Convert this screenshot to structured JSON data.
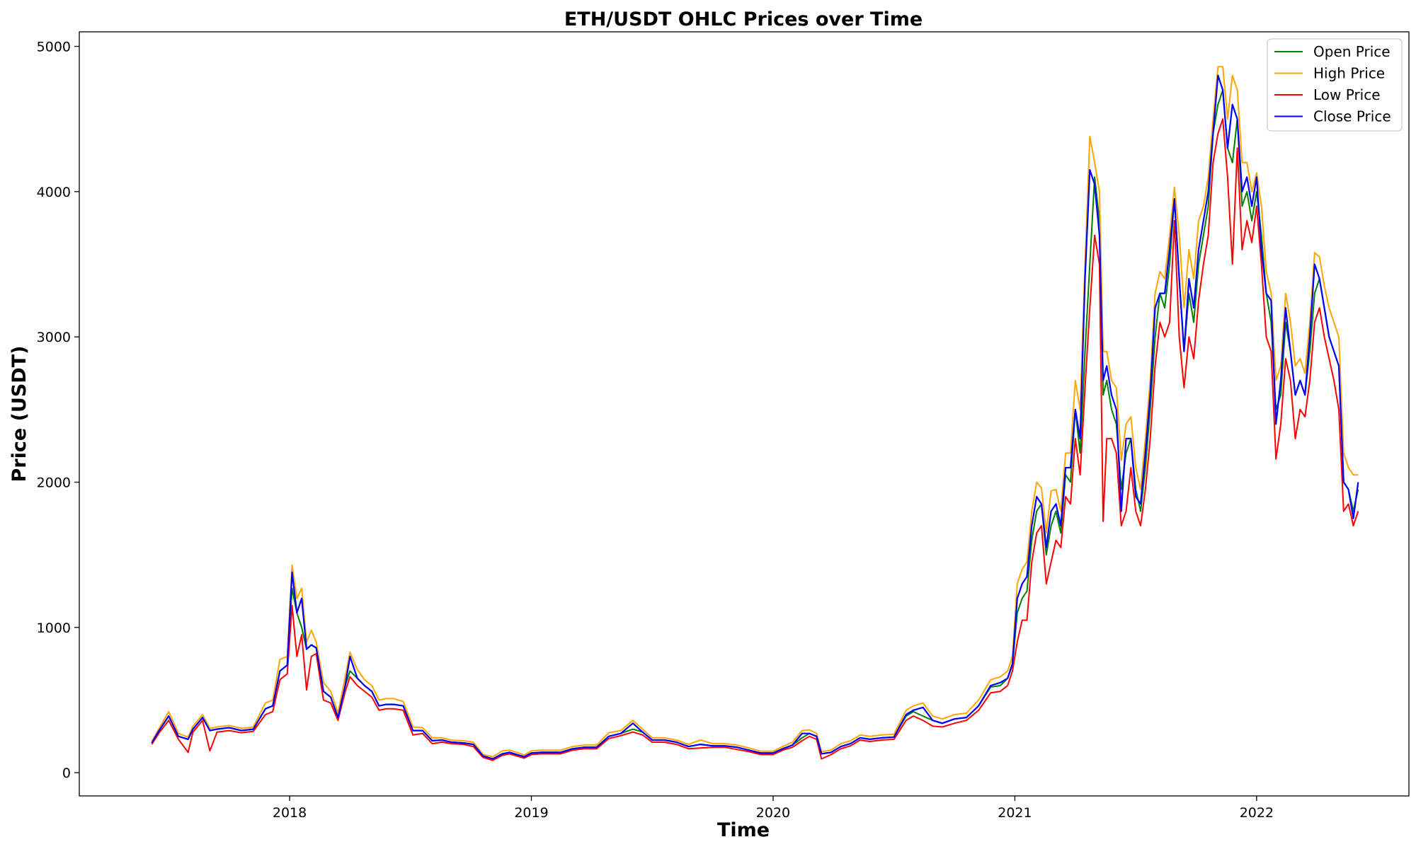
{
  "chart_data": {
    "type": "line",
    "title": "ETH/USDT OHLC Prices over Time",
    "xlabel": "Time",
    "ylabel": "Price (USDT)",
    "x_ticks": [
      "2018",
      "2019",
      "2020",
      "2021",
      "2022"
    ],
    "y_ticks": [
      0,
      1000,
      2000,
      3000,
      4000,
      5000
    ],
    "ylim": [
      -160,
      5100
    ],
    "xlim": [
      2017.13,
      2022.63
    ],
    "grid": false,
    "legend_position": "top-right",
    "x": [
      2017.43,
      2017.46,
      2017.5,
      2017.54,
      2017.58,
      2017.6,
      2017.64,
      2017.67,
      2017.7,
      2017.75,
      2017.8,
      2017.85,
      2017.9,
      2017.93,
      2017.96,
      2017.99,
      2018.01,
      2018.03,
      2018.05,
      2018.07,
      2018.09,
      2018.11,
      2018.14,
      2018.17,
      2018.2,
      2018.23,
      2018.25,
      2018.28,
      2018.31,
      2018.34,
      2018.37,
      2018.4,
      2018.43,
      2018.47,
      2018.51,
      2018.55,
      2018.59,
      2018.63,
      2018.67,
      2018.72,
      2018.76,
      2018.8,
      2018.84,
      2018.88,
      2018.91,
      2018.94,
      2018.97,
      2019.0,
      2019.04,
      2019.08,
      2019.12,
      2019.17,
      2019.22,
      2019.27,
      2019.32,
      2019.37,
      2019.42,
      2019.46,
      2019.5,
      2019.55,
      2019.6,
      2019.65,
      2019.7,
      2019.75,
      2019.8,
      2019.85,
      2019.9,
      2019.95,
      2020.0,
      2020.04,
      2020.08,
      2020.12,
      2020.15,
      2020.18,
      2020.2,
      2020.24,
      2020.28,
      2020.32,
      2020.36,
      2020.4,
      2020.45,
      2020.5,
      2020.55,
      2020.58,
      2020.62,
      2020.66,
      2020.7,
      2020.75,
      2020.8,
      2020.85,
      2020.9,
      2020.94,
      2020.97,
      2020.99,
      2021.01,
      2021.03,
      2021.05,
      2021.07,
      2021.09,
      2021.11,
      2021.13,
      2021.15,
      2021.17,
      2021.19,
      2021.21,
      2021.23,
      2021.25,
      2021.27,
      2021.29,
      2021.31,
      2021.33,
      2021.35,
      2021.365,
      2021.38,
      2021.4,
      2021.42,
      2021.44,
      2021.46,
      2021.48,
      2021.5,
      2021.52,
      2021.54,
      2021.56,
      2021.58,
      2021.6,
      2021.62,
      2021.64,
      2021.66,
      2021.68,
      2021.7,
      2021.72,
      2021.74,
      2021.76,
      2021.78,
      2021.8,
      2021.82,
      2021.84,
      2021.86,
      2021.88,
      2021.9,
      2021.92,
      2021.94,
      2021.96,
      2021.98,
      2022.0,
      2022.02,
      2022.04,
      2022.06,
      2022.08,
      2022.1,
      2022.12,
      2022.14,
      2022.16,
      2022.18,
      2022.2,
      2022.22,
      2022.24,
      2022.26,
      2022.28,
      2022.3,
      2022.32,
      2022.34,
      2022.36,
      2022.38,
      2022.4,
      2022.42
    ],
    "series": [
      {
        "name": "Open Price",
        "color": "#008000",
        "values": [
          205,
          290,
          390,
          250,
          230,
          300,
          380,
          290,
          300,
          310,
          290,
          300,
          440,
          460,
          700,
          740,
          1270,
          1100,
          1000,
          850,
          880,
          860,
          560,
          520,
          380,
          600,
          700,
          650,
          600,
          560,
          460,
          470,
          470,
          460,
          290,
          290,
          220,
          225,
          210,
          205,
          195,
          115,
          95,
          130,
          140,
          125,
          110,
          135,
          140,
          140,
          140,
          165,
          175,
          175,
          250,
          270,
          300,
          280,
          225,
          225,
          210,
          180,
          195,
          185,
          185,
          175,
          155,
          135,
          135,
          165,
          190,
          240,
          270,
          250,
          130,
          140,
          180,
          200,
          240,
          230,
          240,
          245,
          390,
          420,
          390,
          360,
          340,
          370,
          380,
          460,
          590,
          600,
          650,
          740,
          1100,
          1200,
          1250,
          1600,
          1800,
          1850,
          1500,
          1700,
          1800,
          1650,
          2050,
          2000,
          2500,
          2200,
          2900,
          3500,
          4100,
          3800,
          2600,
          2700,
          2500,
          2400,
          1950,
          2200,
          2300,
          1950,
          1800,
          2100,
          2500,
          3000,
          3300,
          3200,
          3500,
          3950,
          3400,
          2900,
          3300,
          3100,
          3500,
          3700,
          3900,
          4400,
          4600,
          4700,
          4300,
          4200,
          4500,
          3900,
          4000,
          3800,
          4000,
          3700,
          3300,
          3100,
          2500,
          2600,
          3100,
          2900,
          2600,
          2700,
          2600,
          2900,
          3300,
          3400,
          3200,
          3000,
          2900,
          2800,
          2000,
          1950,
          1800,
          1950
        ]
      },
      {
        "name": "High Price",
        "color": "#ffa500",
        "values": [
          215,
          305,
          420,
          270,
          245,
          320,
          400,
          305,
          315,
          325,
          305,
          315,
          480,
          500,
          780,
          800,
          1430,
          1200,
          1270,
          900,
          980,
          900,
          620,
          560,
          410,
          660,
          830,
          710,
          640,
          600,
          500,
          510,
          510,
          490,
          315,
          310,
          240,
          240,
          225,
          220,
          210,
          125,
          110,
          150,
          155,
          140,
          122,
          150,
          155,
          155,
          155,
          180,
          190,
          190,
          275,
          290,
          360,
          300,
          240,
          240,
          225,
          195,
          225,
          200,
          200,
          190,
          170,
          148,
          148,
          180,
          210,
          290,
          295,
          270,
          145,
          155,
          200,
          220,
          260,
          250,
          260,
          265,
          430,
          460,
          480,
          390,
          370,
          400,
          410,
          500,
          640,
          660,
          700,
          800,
          1300,
          1400,
          1450,
          1800,
          2000,
          1960,
          1650,
          1940,
          1950,
          1800,
          2200,
          2200,
          2700,
          2500,
          3500,
          4380,
          4200,
          4000,
          2900,
          2900,
          2700,
          2650,
          2150,
          2400,
          2450,
          2100,
          1950,
          2300,
          2700,
          3300,
          3450,
          3400,
          3700,
          4030,
          3700,
          3200,
          3600,
          3400,
          3800,
          3900,
          4100,
          4500,
          4860,
          4860,
          4500,
          4800,
          4700,
          4200,
          4200,
          4000,
          4130,
          3900,
          3450,
          3300,
          2700,
          2800,
          3300,
          3100,
          2800,
          2850,
          2750,
          3100,
          3580,
          3550,
          3350,
          3200,
          3100,
          3000,
          2200,
          2100,
          2050,
          2050
        ]
      },
      {
        "name": "Low Price",
        "color": "#ff0000",
        "values": [
          195,
          275,
          360,
          230,
          140,
          280,
          360,
          150,
          280,
          290,
          275,
          285,
          400,
          420,
          640,
          680,
          1150,
          800,
          950,
          570,
          800,
          820,
          500,
          480,
          360,
          560,
          660,
          600,
          560,
          520,
          430,
          440,
          440,
          430,
          260,
          270,
          200,
          210,
          200,
          195,
          180,
          105,
          85,
          120,
          130,
          115,
          100,
          125,
          130,
          130,
          130,
          155,
          165,
          165,
          235,
          255,
          280,
          260,
          210,
          210,
          195,
          165,
          170,
          175,
          175,
          160,
          145,
          125,
          125,
          155,
          175,
          220,
          250,
          230,
          95,
          125,
          165,
          185,
          225,
          215,
          225,
          230,
          360,
          390,
          360,
          320,
          315,
          340,
          360,
          430,
          550,
          560,
          600,
          700,
          900,
          1050,
          1050,
          1450,
          1650,
          1700,
          1300,
          1450,
          1600,
          1550,
          1900,
          1850,
          2300,
          2050,
          2650,
          3200,
          3700,
          3500,
          1730,
          2300,
          2300,
          2200,
          1700,
          1800,
          2100,
          1800,
          1700,
          1950,
          2300,
          2800,
          3100,
          3000,
          3100,
          3800,
          3000,
          2650,
          3000,
          2850,
          3250,
          3500,
          3700,
          4200,
          4400,
          4500,
          4100,
          3500,
          4300,
          3600,
          3800,
          3650,
          3900,
          3500,
          3000,
          2900,
          2160,
          2400,
          2850,
          2700,
          2300,
          2500,
          2450,
          2700,
          3100,
          3200,
          3000,
          2850,
          2700,
          2500,
          1800,
          1850,
          1700,
          1800
        ]
      },
      {
        "name": "Close Price",
        "color": "#0000ff",
        "values": [
          205,
          290,
          390,
          250,
          230,
          300,
          380,
          290,
          300,
          310,
          290,
          300,
          440,
          460,
          700,
          740,
          1380,
          1100,
          1200,
          850,
          880,
          860,
          560,
          520,
          380,
          600,
          800,
          650,
          600,
          560,
          460,
          470,
          470,
          460,
          290,
          290,
          220,
          225,
          210,
          205,
          195,
          115,
          95,
          130,
          140,
          125,
          110,
          135,
          140,
          140,
          140,
          165,
          175,
          175,
          250,
          270,
          340,
          280,
          225,
          225,
          210,
          180,
          195,
          185,
          185,
          175,
          155,
          135,
          135,
          165,
          190,
          270,
          270,
          250,
          130,
          140,
          180,
          200,
          240,
          230,
          240,
          245,
          400,
          430,
          450,
          360,
          340,
          370,
          380,
          460,
          600,
          620,
          650,
          750,
          1200,
          1300,
          1350,
          1700,
          1900,
          1850,
          1550,
          1800,
          1850,
          1700,
          2100,
          2100,
          2500,
          2300,
          3400,
          4150,
          4050,
          3700,
          2700,
          2800,
          2600,
          2500,
          1800,
          2300,
          2300,
          1900,
          1850,
          2200,
          2600,
          3200,
          3300,
          3300,
          3600,
          3950,
          3400,
          2900,
          3400,
          3200,
          3600,
          3800,
          4000,
          4400,
          4800,
          4700,
          4300,
          4600,
          4500,
          4000,
          4100,
          3900,
          4100,
          3600,
          3300,
          3250,
          2400,
          2700,
          3200,
          2900,
          2600,
          2700,
          2600,
          3000,
          3500,
          3400,
          3200,
          3000,
          2900,
          2800,
          2000,
          1950,
          1750,
          2000
        ]
      }
    ]
  }
}
